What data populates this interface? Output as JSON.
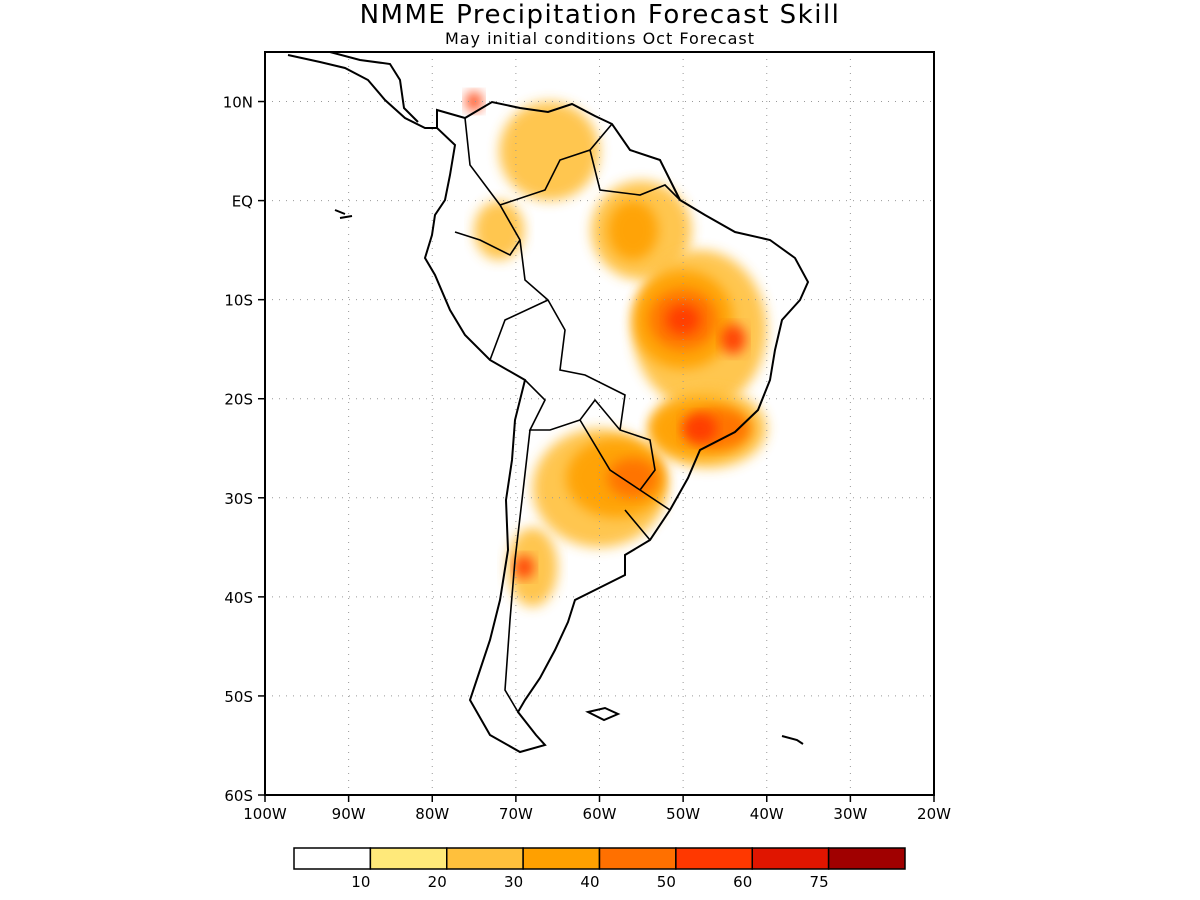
{
  "title": "NMME Precipitation Forecast Skill",
  "subtitle": "May initial conditions  Oct Forecast",
  "map": {
    "lon_range": [
      -100,
      -20
    ],
    "lat_range": [
      -60,
      15
    ],
    "lon_labels": [
      {
        "lon": -100,
        "text": "100W"
      },
      {
        "lon": -90,
        "text": "90W"
      },
      {
        "lon": -80,
        "text": "80W"
      },
      {
        "lon": -70,
        "text": "70W"
      },
      {
        "lon": -60,
        "text": "60W"
      },
      {
        "lon": -50,
        "text": "50W"
      },
      {
        "lon": -40,
        "text": "40W"
      },
      {
        "lon": -30,
        "text": "30W"
      },
      {
        "lon": -20,
        "text": "20W"
      }
    ],
    "lat_labels": [
      {
        "lat": 10,
        "text": "10N"
      },
      {
        "lat": 0,
        "text": "EQ"
      },
      {
        "lat": -10,
        "text": "10S"
      },
      {
        "lat": -20,
        "text": "20S"
      },
      {
        "lat": -30,
        "text": "30S"
      },
      {
        "lat": -40,
        "text": "40S"
      },
      {
        "lat": -50,
        "text": "50S"
      },
      {
        "lat": -60,
        "text": "60S"
      }
    ],
    "grid": "dotted"
  },
  "colorbar": {
    "colors": [
      "#ffffff",
      "#ffe97a",
      "#ffc03c",
      "#ffa000",
      "#ff7000",
      "#ff3800",
      "#e01500",
      "#a00000"
    ],
    "labels": [
      "10",
      "20",
      "30",
      "40",
      "50",
      "60",
      "75"
    ]
  },
  "skill_regions": [
    {
      "level": 1,
      "lon": -66,
      "lat": 5,
      "rlon": 6,
      "rlat": 5
    },
    {
      "level": 1,
      "lon": -55,
      "lat": -3,
      "rlon": 6,
      "rlat": 5
    },
    {
      "level": 1,
      "lon": -48,
      "lat": -13,
      "rlon": 8,
      "rlat": 8
    },
    {
      "level": 1,
      "lon": -47,
      "lat": -23,
      "rlon": 7,
      "rlat": 4
    },
    {
      "level": 1,
      "lon": -60,
      "lat": -29,
      "rlon": 8,
      "rlat": 6
    },
    {
      "level": 1,
      "lon": -68,
      "lat": -37,
      "rlon": 3,
      "rlat": 4
    },
    {
      "level": 1,
      "lon": -72,
      "lat": -3,
      "rlon": 3,
      "rlat": 3
    },
    {
      "level": 2,
      "lon": -50,
      "lat": -12,
      "rlon": 6,
      "rlat": 5
    },
    {
      "level": 2,
      "lon": -48,
      "lat": -23,
      "rlon": 6,
      "rlat": 3
    },
    {
      "level": 2,
      "lon": -58,
      "lat": -28,
      "rlon": 6,
      "rlat": 4
    },
    {
      "level": 2,
      "lon": -56,
      "lat": -3,
      "rlon": 3,
      "rlat": 3
    },
    {
      "level": 3,
      "lon": -50,
      "lat": -12,
      "rlon": 4,
      "rlat": 3
    },
    {
      "level": 3,
      "lon": -46,
      "lat": -23,
      "rlon": 4,
      "rlat": 2
    },
    {
      "level": 3,
      "lon": -56,
      "lat": -28,
      "rlon": 3,
      "rlat": 2
    },
    {
      "level": 4,
      "lon": -50,
      "lat": -12,
      "rlon": 2,
      "rlat": 1.5
    },
    {
      "level": 4,
      "lon": -44,
      "lat": -14,
      "rlon": 1.5,
      "rlat": 1.5
    },
    {
      "level": 4,
      "lon": -48,
      "lat": -23,
      "rlon": 2,
      "rlat": 1.5
    },
    {
      "level": 4,
      "lon": -69,
      "lat": -37,
      "rlon": 1.2,
      "rlat": 1.2
    },
    {
      "level": 4,
      "lon": -75,
      "lat": 10,
      "rlon": 1,
      "rlat": 1
    }
  ]
}
